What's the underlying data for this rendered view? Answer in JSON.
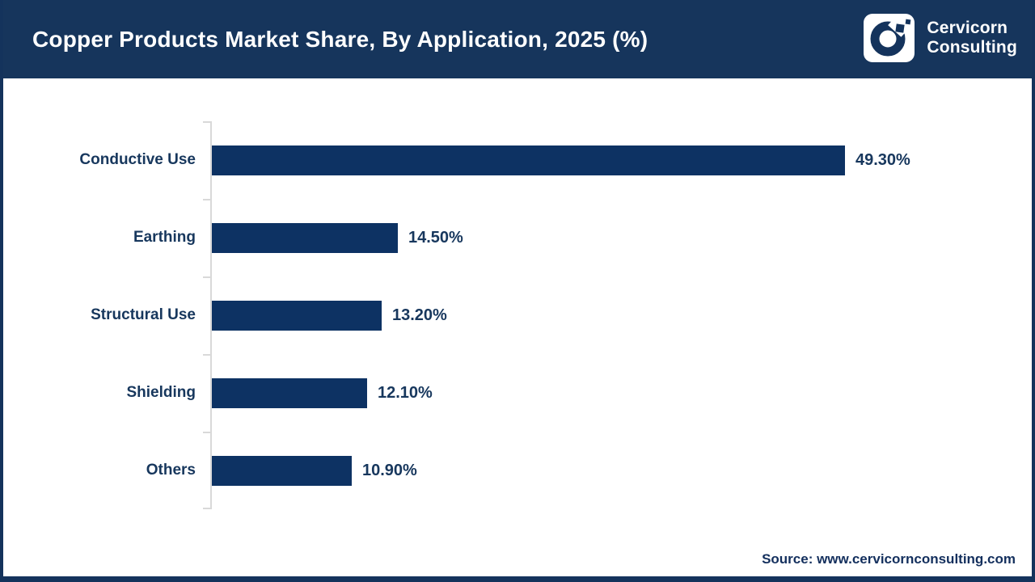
{
  "header": {
    "title": "Copper Products Market Share, By Application, 2025 (%)",
    "logo": {
      "line1": "Cervicorn",
      "line2": "Consulting"
    }
  },
  "chart_data": {
    "type": "bar",
    "orientation": "horizontal",
    "title": "Copper Products Market Share, By Application, 2025 (%)",
    "categories": [
      "Conductive Use",
      "Earthing",
      "Structural Use",
      "Shielding",
      "Others"
    ],
    "values": [
      49.3,
      14.5,
      13.2,
      12.1,
      10.9
    ],
    "value_labels": [
      "49.30%",
      "14.50%",
      "13.20%",
      "12.10%",
      "10.90%"
    ],
    "xlabel": "",
    "ylabel": "",
    "xlim": [
      0,
      55
    ],
    "grid": false,
    "legend": false,
    "bar_color": "#0d3263",
    "axis_color": "#d9d9d9",
    "label_color": "#17375d"
  },
  "footer": {
    "source": "Source: www.cervicornconsulting.com"
  },
  "colors": {
    "header_bg": "#16355c",
    "border": "#14335c",
    "bar": "#0d3263",
    "text_navy": "#17375d",
    "white": "#ffffff"
  }
}
